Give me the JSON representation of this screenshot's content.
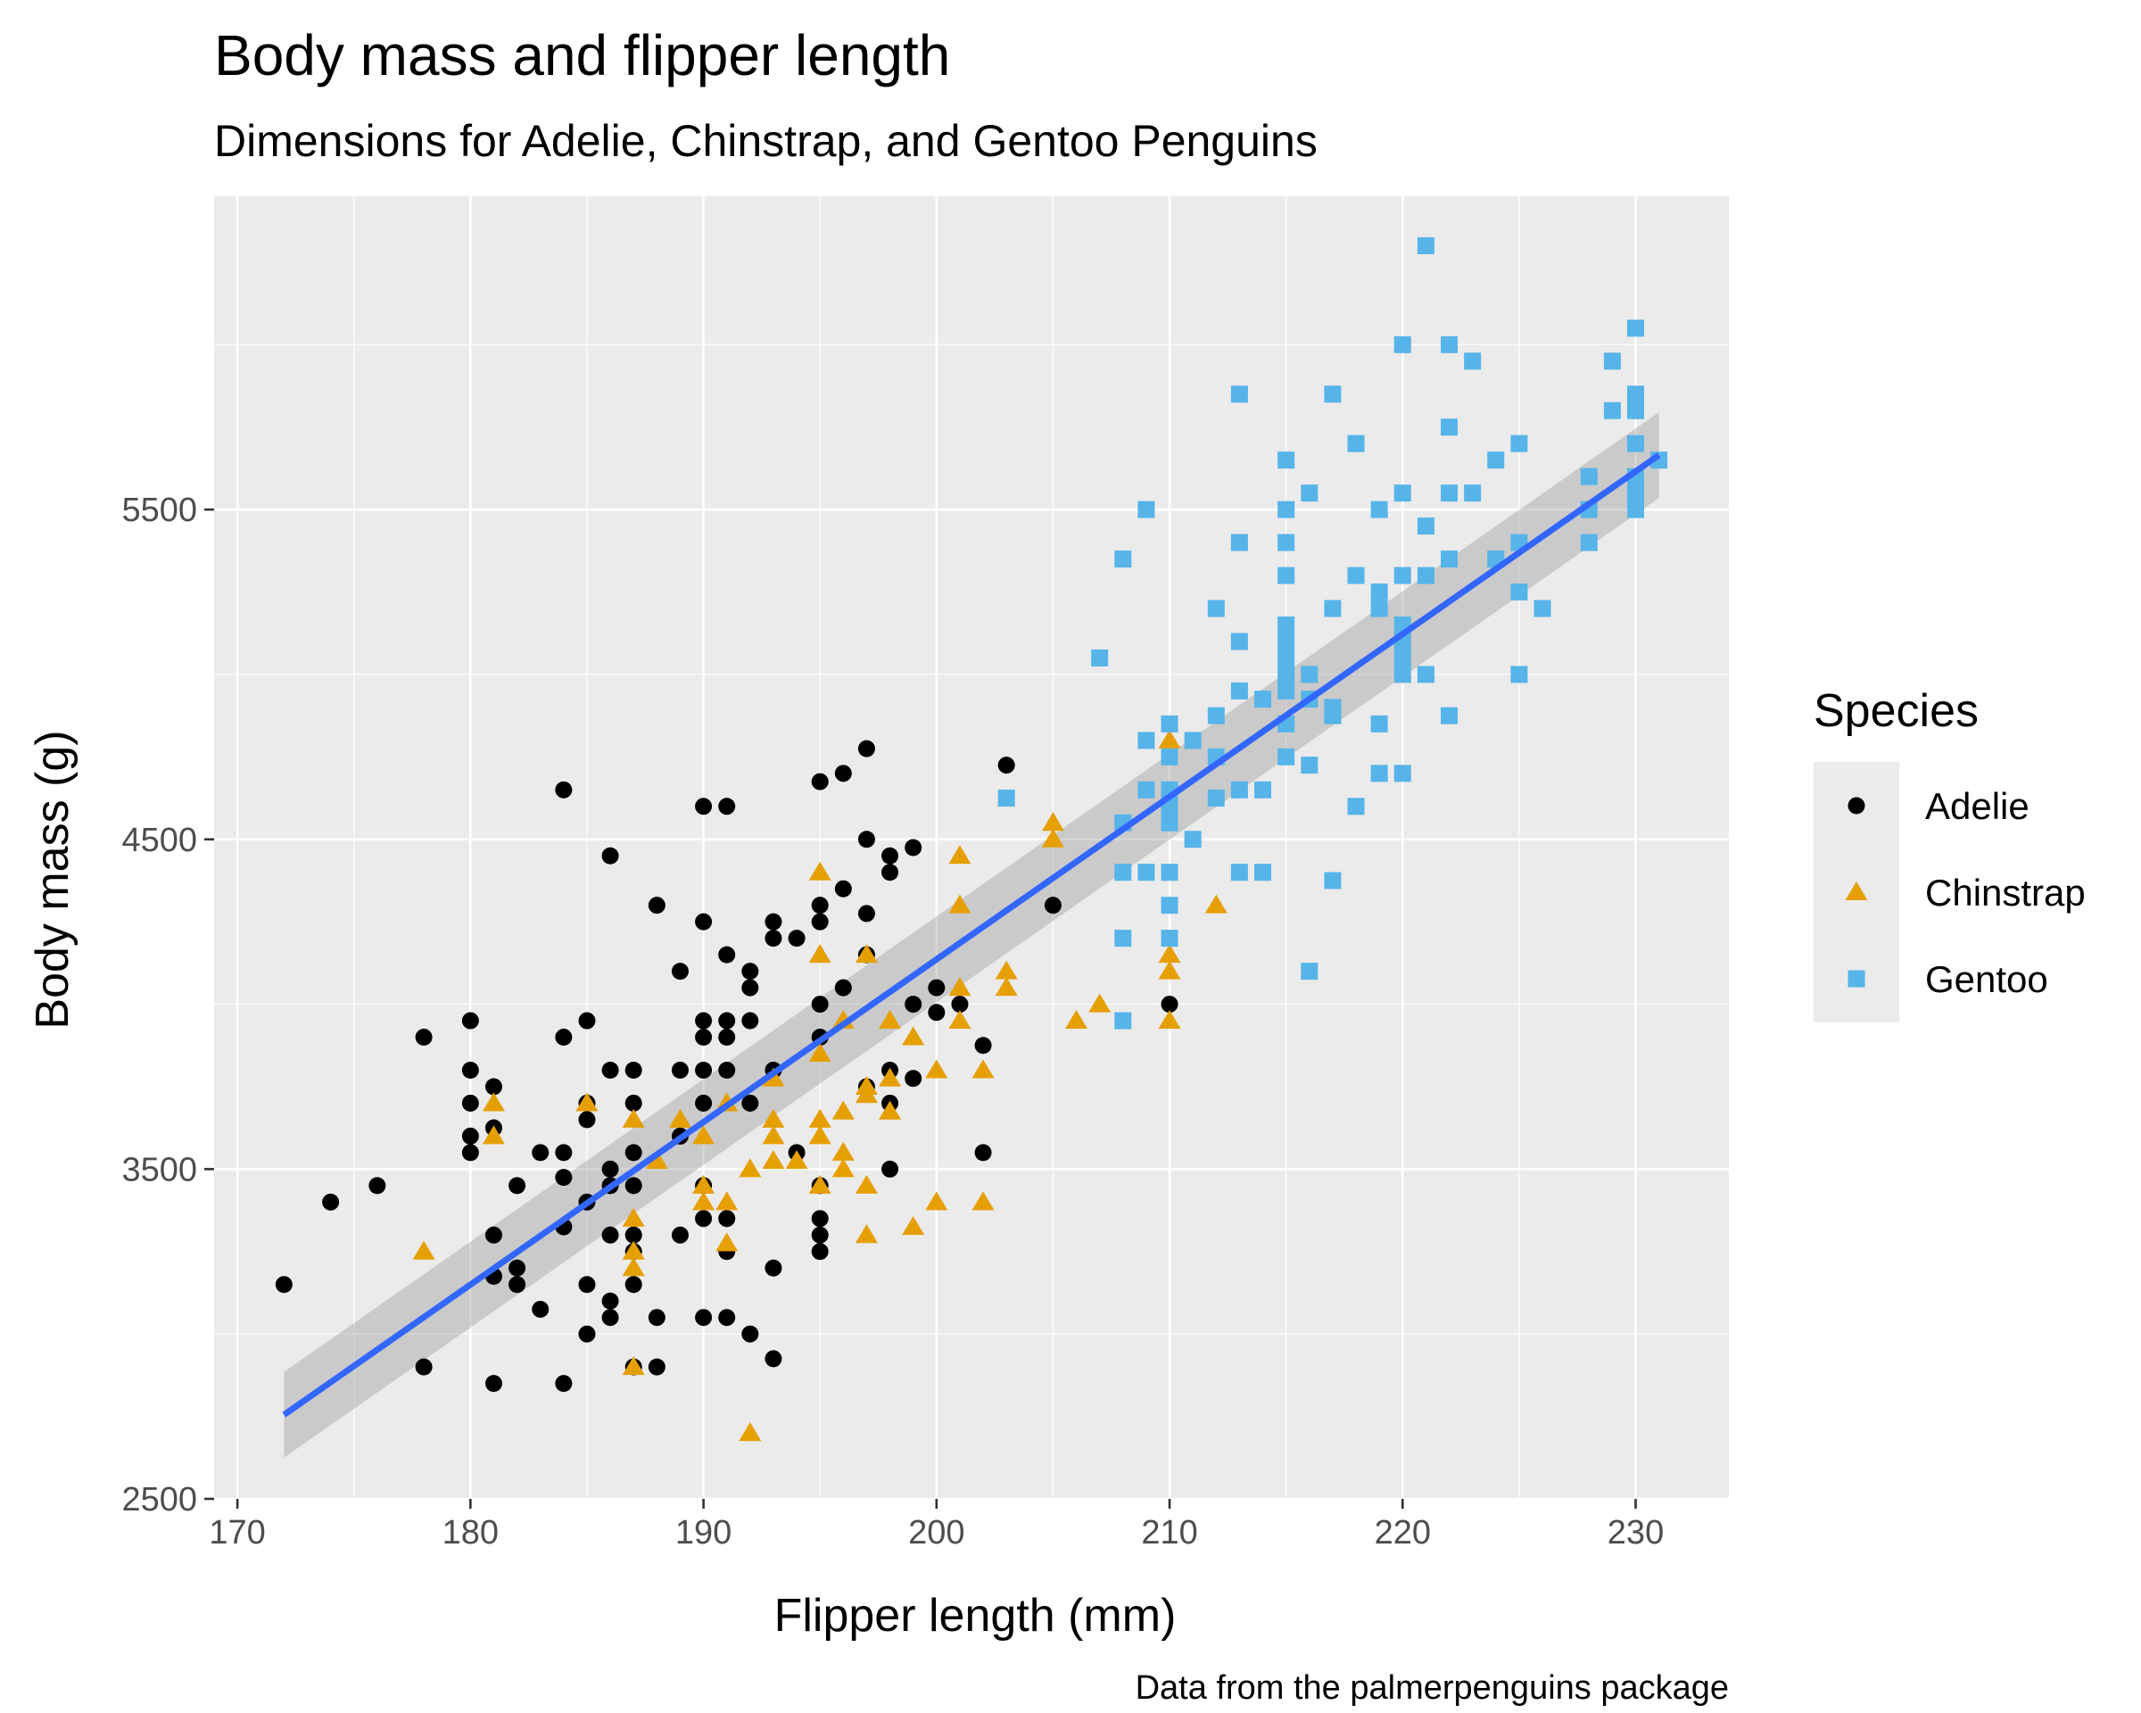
{
  "chart_data": {
    "type": "scatter",
    "title": "Body mass and flipper length",
    "subtitle": "Dimensions for Adelie, Chinstrap, and Gentoo Penguins",
    "xlabel": "Flipper length (mm)",
    "ylabel": "Body mass (g)",
    "caption": "Data from the palmerpenguins package",
    "xlim": [
      169,
      234
    ],
    "ylim": [
      2500,
      6450
    ],
    "x_ticks": [
      170,
      180,
      190,
      200,
      210,
      220,
      230
    ],
    "y_ticks": [
      2500,
      3500,
      4500,
      5500
    ],
    "x_tick_labels": [
      "170",
      "180",
      "190",
      "200",
      "210",
      "220",
      "230"
    ],
    "y_tick_labels": [
      "2500",
      "3500",
      "4500",
      "5500"
    ],
    "grid": true,
    "legend": {
      "title": "Species",
      "position": "right",
      "items": [
        "Adelie",
        "Chinstrap",
        "Gentoo"
      ]
    },
    "series": [
      {
        "name": "Adelie",
        "color": "#000000",
        "marker": "circle",
        "points": [
          [
            172,
            3150
          ],
          [
            174,
            3400
          ],
          [
            176,
            3450
          ],
          [
            178,
            3900
          ],
          [
            178,
            2900
          ],
          [
            180,
            3950
          ],
          [
            180,
            3800
          ],
          [
            180,
            3700
          ],
          [
            180,
            3600
          ],
          [
            180,
            3550
          ],
          [
            181,
            3750
          ],
          [
            181,
            3625
          ],
          [
            181,
            3300
          ],
          [
            181,
            3175
          ],
          [
            181,
            2850
          ],
          [
            182,
            3450
          ],
          [
            182,
            3200
          ],
          [
            182,
            3150
          ],
          [
            183,
            3550
          ],
          [
            183,
            3075
          ],
          [
            184,
            3900
          ],
          [
            184,
            3550
          ],
          [
            184,
            3475
          ],
          [
            184,
            3325
          ],
          [
            184,
            4650
          ],
          [
            184,
            2850
          ],
          [
            185,
            3950
          ],
          [
            185,
            3700
          ],
          [
            185,
            3650
          ],
          [
            185,
            3400
          ],
          [
            185,
            3150
          ],
          [
            185,
            3000
          ],
          [
            186,
            4450
          ],
          [
            186,
            3800
          ],
          [
            186,
            3500
          ],
          [
            186,
            3450
          ],
          [
            186,
            3300
          ],
          [
            186,
            3100
          ],
          [
            186,
            3050
          ],
          [
            187,
            3800
          ],
          [
            187,
            3700
          ],
          [
            187,
            3550
          ],
          [
            187,
            3450
          ],
          [
            187,
            3300
          ],
          [
            187,
            3250
          ],
          [
            187,
            3150
          ],
          [
            187,
            2900
          ],
          [
            188,
            4300
          ],
          [
            188,
            3050
          ],
          [
            188,
            2900
          ],
          [
            189,
            4100
          ],
          [
            189,
            3800
          ],
          [
            189,
            3600
          ],
          [
            189,
            3300
          ],
          [
            190,
            4600
          ],
          [
            190,
            4250
          ],
          [
            190,
            3950
          ],
          [
            190,
            3900
          ],
          [
            190,
            3800
          ],
          [
            190,
            3700
          ],
          [
            190,
            3450
          ],
          [
            190,
            3350
          ],
          [
            190,
            3050
          ],
          [
            191,
            4600
          ],
          [
            191,
            4150
          ],
          [
            191,
            3950
          ],
          [
            191,
            3900
          ],
          [
            191,
            3800
          ],
          [
            191,
            3350
          ],
          [
            191,
            3250
          ],
          [
            191,
            3050
          ],
          [
            192,
            4050
          ],
          [
            192,
            4100
          ],
          [
            192,
            3950
          ],
          [
            192,
            3700
          ],
          [
            192,
            3000
          ],
          [
            193,
            4250
          ],
          [
            193,
            4200
          ],
          [
            193,
            3800
          ],
          [
            193,
            3200
          ],
          [
            193,
            2925
          ],
          [
            194,
            4200
          ],
          [
            194,
            3550
          ],
          [
            195,
            4675
          ],
          [
            195,
            4300
          ],
          [
            195,
            4250
          ],
          [
            195,
            4000
          ],
          [
            195,
            3900
          ],
          [
            195,
            3450
          ],
          [
            195,
            3350
          ],
          [
            195,
            3300
          ],
          [
            195,
            3250
          ],
          [
            196,
            4700
          ],
          [
            196,
            4350
          ],
          [
            196,
            4050
          ],
          [
            197,
            4775
          ],
          [
            197,
            4500
          ],
          [
            197,
            4275
          ],
          [
            197,
            4150
          ],
          [
            197,
            3750
          ],
          [
            198,
            4450
          ],
          [
            198,
            4400
          ],
          [
            198,
            3800
          ],
          [
            198,
            3700
          ],
          [
            198,
            3500
          ],
          [
            199,
            4475
          ],
          [
            199,
            4000
          ],
          [
            199,
            3775
          ],
          [
            200,
            4050
          ],
          [
            200,
            3975
          ],
          [
            201,
            4000
          ],
          [
            202,
            3875
          ],
          [
            202,
            3550
          ],
          [
            203,
            4725
          ],
          [
            205,
            4300
          ],
          [
            210,
            4000
          ]
        ]
      },
      {
        "name": "Chinstrap",
        "color": "#e69f00",
        "marker": "triangle",
        "points": [
          [
            178,
            3250
          ],
          [
            181,
            3700
          ],
          [
            181,
            3600
          ],
          [
            185,
            3700
          ],
          [
            187,
            3650
          ],
          [
            187,
            3350
          ],
          [
            187,
            3250
          ],
          [
            187,
            3200
          ],
          [
            187,
            2900
          ],
          [
            188,
            3525
          ],
          [
            189,
            3650
          ],
          [
            190,
            3600
          ],
          [
            190,
            3450
          ],
          [
            190,
            3400
          ],
          [
            191,
            3700
          ],
          [
            191,
            3400
          ],
          [
            191,
            3275
          ],
          [
            192,
            3500
          ],
          [
            192,
            2700
          ],
          [
            193,
            3775
          ],
          [
            193,
            3650
          ],
          [
            193,
            3600
          ],
          [
            193,
            3525
          ],
          [
            194,
            3525
          ],
          [
            195,
            4400
          ],
          [
            195,
            4150
          ],
          [
            195,
            3850
          ],
          [
            195,
            3650
          ],
          [
            195,
            3600
          ],
          [
            195,
            3450
          ],
          [
            196,
            3950
          ],
          [
            196,
            3675
          ],
          [
            196,
            3550
          ],
          [
            196,
            3500
          ],
          [
            197,
            4150
          ],
          [
            197,
            3750
          ],
          [
            197,
            3725
          ],
          [
            197,
            3450
          ],
          [
            197,
            3300
          ],
          [
            198,
            3950
          ],
          [
            198,
            3775
          ],
          [
            198,
            3675
          ],
          [
            199,
            3900
          ],
          [
            199,
            3325
          ],
          [
            200,
            3800
          ],
          [
            200,
            3400
          ],
          [
            201,
            4450
          ],
          [
            201,
            4300
          ],
          [
            201,
            4050
          ],
          [
            201,
            3950
          ],
          [
            202,
            3800
          ],
          [
            202,
            3400
          ],
          [
            203,
            4100
          ],
          [
            203,
            4050
          ],
          [
            205,
            4550
          ],
          [
            205,
            4500
          ],
          [
            206,
            3950
          ],
          [
            207,
            4000
          ],
          [
            210,
            4800
          ],
          [
            210,
            4150
          ],
          [
            210,
            4100
          ],
          [
            210,
            3950
          ],
          [
            212,
            4300
          ]
        ]
      },
      {
        "name": "Gentoo",
        "color": "#56b4e9",
        "marker": "square",
        "points": [
          [
            203,
            4625
          ],
          [
            207,
            5050
          ],
          [
            208,
            5350
          ],
          [
            208,
            4550
          ],
          [
            208,
            4400
          ],
          [
            208,
            4200
          ],
          [
            208,
            3950
          ],
          [
            209,
            5500
          ],
          [
            209,
            4800
          ],
          [
            209,
            4650
          ],
          [
            209,
            4400
          ],
          [
            210,
            4850
          ],
          [
            210,
            4750
          ],
          [
            210,
            4650
          ],
          [
            210,
            4600
          ],
          [
            210,
            4550
          ],
          [
            210,
            4400
          ],
          [
            210,
            4300
          ],
          [
            210,
            4200
          ],
          [
            211,
            4800
          ],
          [
            211,
            4500
          ],
          [
            212,
            5200
          ],
          [
            212,
            4875
          ],
          [
            212,
            4750
          ],
          [
            212,
            4625
          ],
          [
            213,
            5850
          ],
          [
            213,
            5400
          ],
          [
            213,
            5100
          ],
          [
            213,
            4950
          ],
          [
            213,
            4650
          ],
          [
            213,
            4400
          ],
          [
            214,
            4925
          ],
          [
            214,
            4650
          ],
          [
            214,
            4400
          ],
          [
            215,
            5650
          ],
          [
            215,
            5500
          ],
          [
            215,
            5400
          ],
          [
            215,
            5300
          ],
          [
            215,
            5150
          ],
          [
            215,
            5100
          ],
          [
            215,
            5050
          ],
          [
            215,
            5000
          ],
          [
            215,
            4950
          ],
          [
            215,
            4850
          ],
          [
            215,
            4750
          ],
          [
            216,
            5550
          ],
          [
            216,
            5000
          ],
          [
            216,
            4925
          ],
          [
            216,
            4725
          ],
          [
            216,
            4100
          ],
          [
            217,
            5850
          ],
          [
            217,
            5200
          ],
          [
            217,
            4900
          ],
          [
            217,
            4875
          ],
          [
            217,
            4375
          ],
          [
            218,
            5700
          ],
          [
            218,
            5300
          ],
          [
            218,
            4600
          ],
          [
            219,
            5500
          ],
          [
            219,
            5250
          ],
          [
            219,
            5200
          ],
          [
            219,
            4850
          ],
          [
            219,
            4700
          ],
          [
            220,
            6000
          ],
          [
            220,
            5550
          ],
          [
            220,
            5300
          ],
          [
            220,
            5150
          ],
          [
            220,
            5100
          ],
          [
            220,
            5050
          ],
          [
            220,
            5000
          ],
          [
            220,
            4700
          ],
          [
            221,
            6300
          ],
          [
            221,
            5450
          ],
          [
            221,
            5300
          ],
          [
            221,
            5000
          ],
          [
            222,
            6000
          ],
          [
            222,
            5750
          ],
          [
            222,
            5550
          ],
          [
            222,
            5350
          ],
          [
            222,
            4875
          ],
          [
            223,
            5950
          ],
          [
            223,
            5550
          ],
          [
            224,
            5650
          ],
          [
            224,
            5350
          ],
          [
            225,
            5700
          ],
          [
            225,
            5400
          ],
          [
            225,
            5250
          ],
          [
            225,
            5000
          ],
          [
            226,
            5200
          ],
          [
            228,
            5600
          ],
          [
            228,
            5500
          ],
          [
            228,
            5400
          ],
          [
            229,
            5950
          ],
          [
            229,
            5800
          ],
          [
            230,
            6050
          ],
          [
            230,
            5850
          ],
          [
            230,
            5800
          ],
          [
            230,
            5700
          ],
          [
            230,
            5600
          ],
          [
            230,
            5550
          ],
          [
            230,
            5500
          ],
          [
            231,
            5650
          ]
        ]
      }
    ],
    "trendline": {
      "method": "linear",
      "color": "#3366ff",
      "x": [
        172,
        231
      ],
      "y": [
        2755,
        5665
      ],
      "ci_halfwidth": [
        130,
        130
      ]
    }
  }
}
